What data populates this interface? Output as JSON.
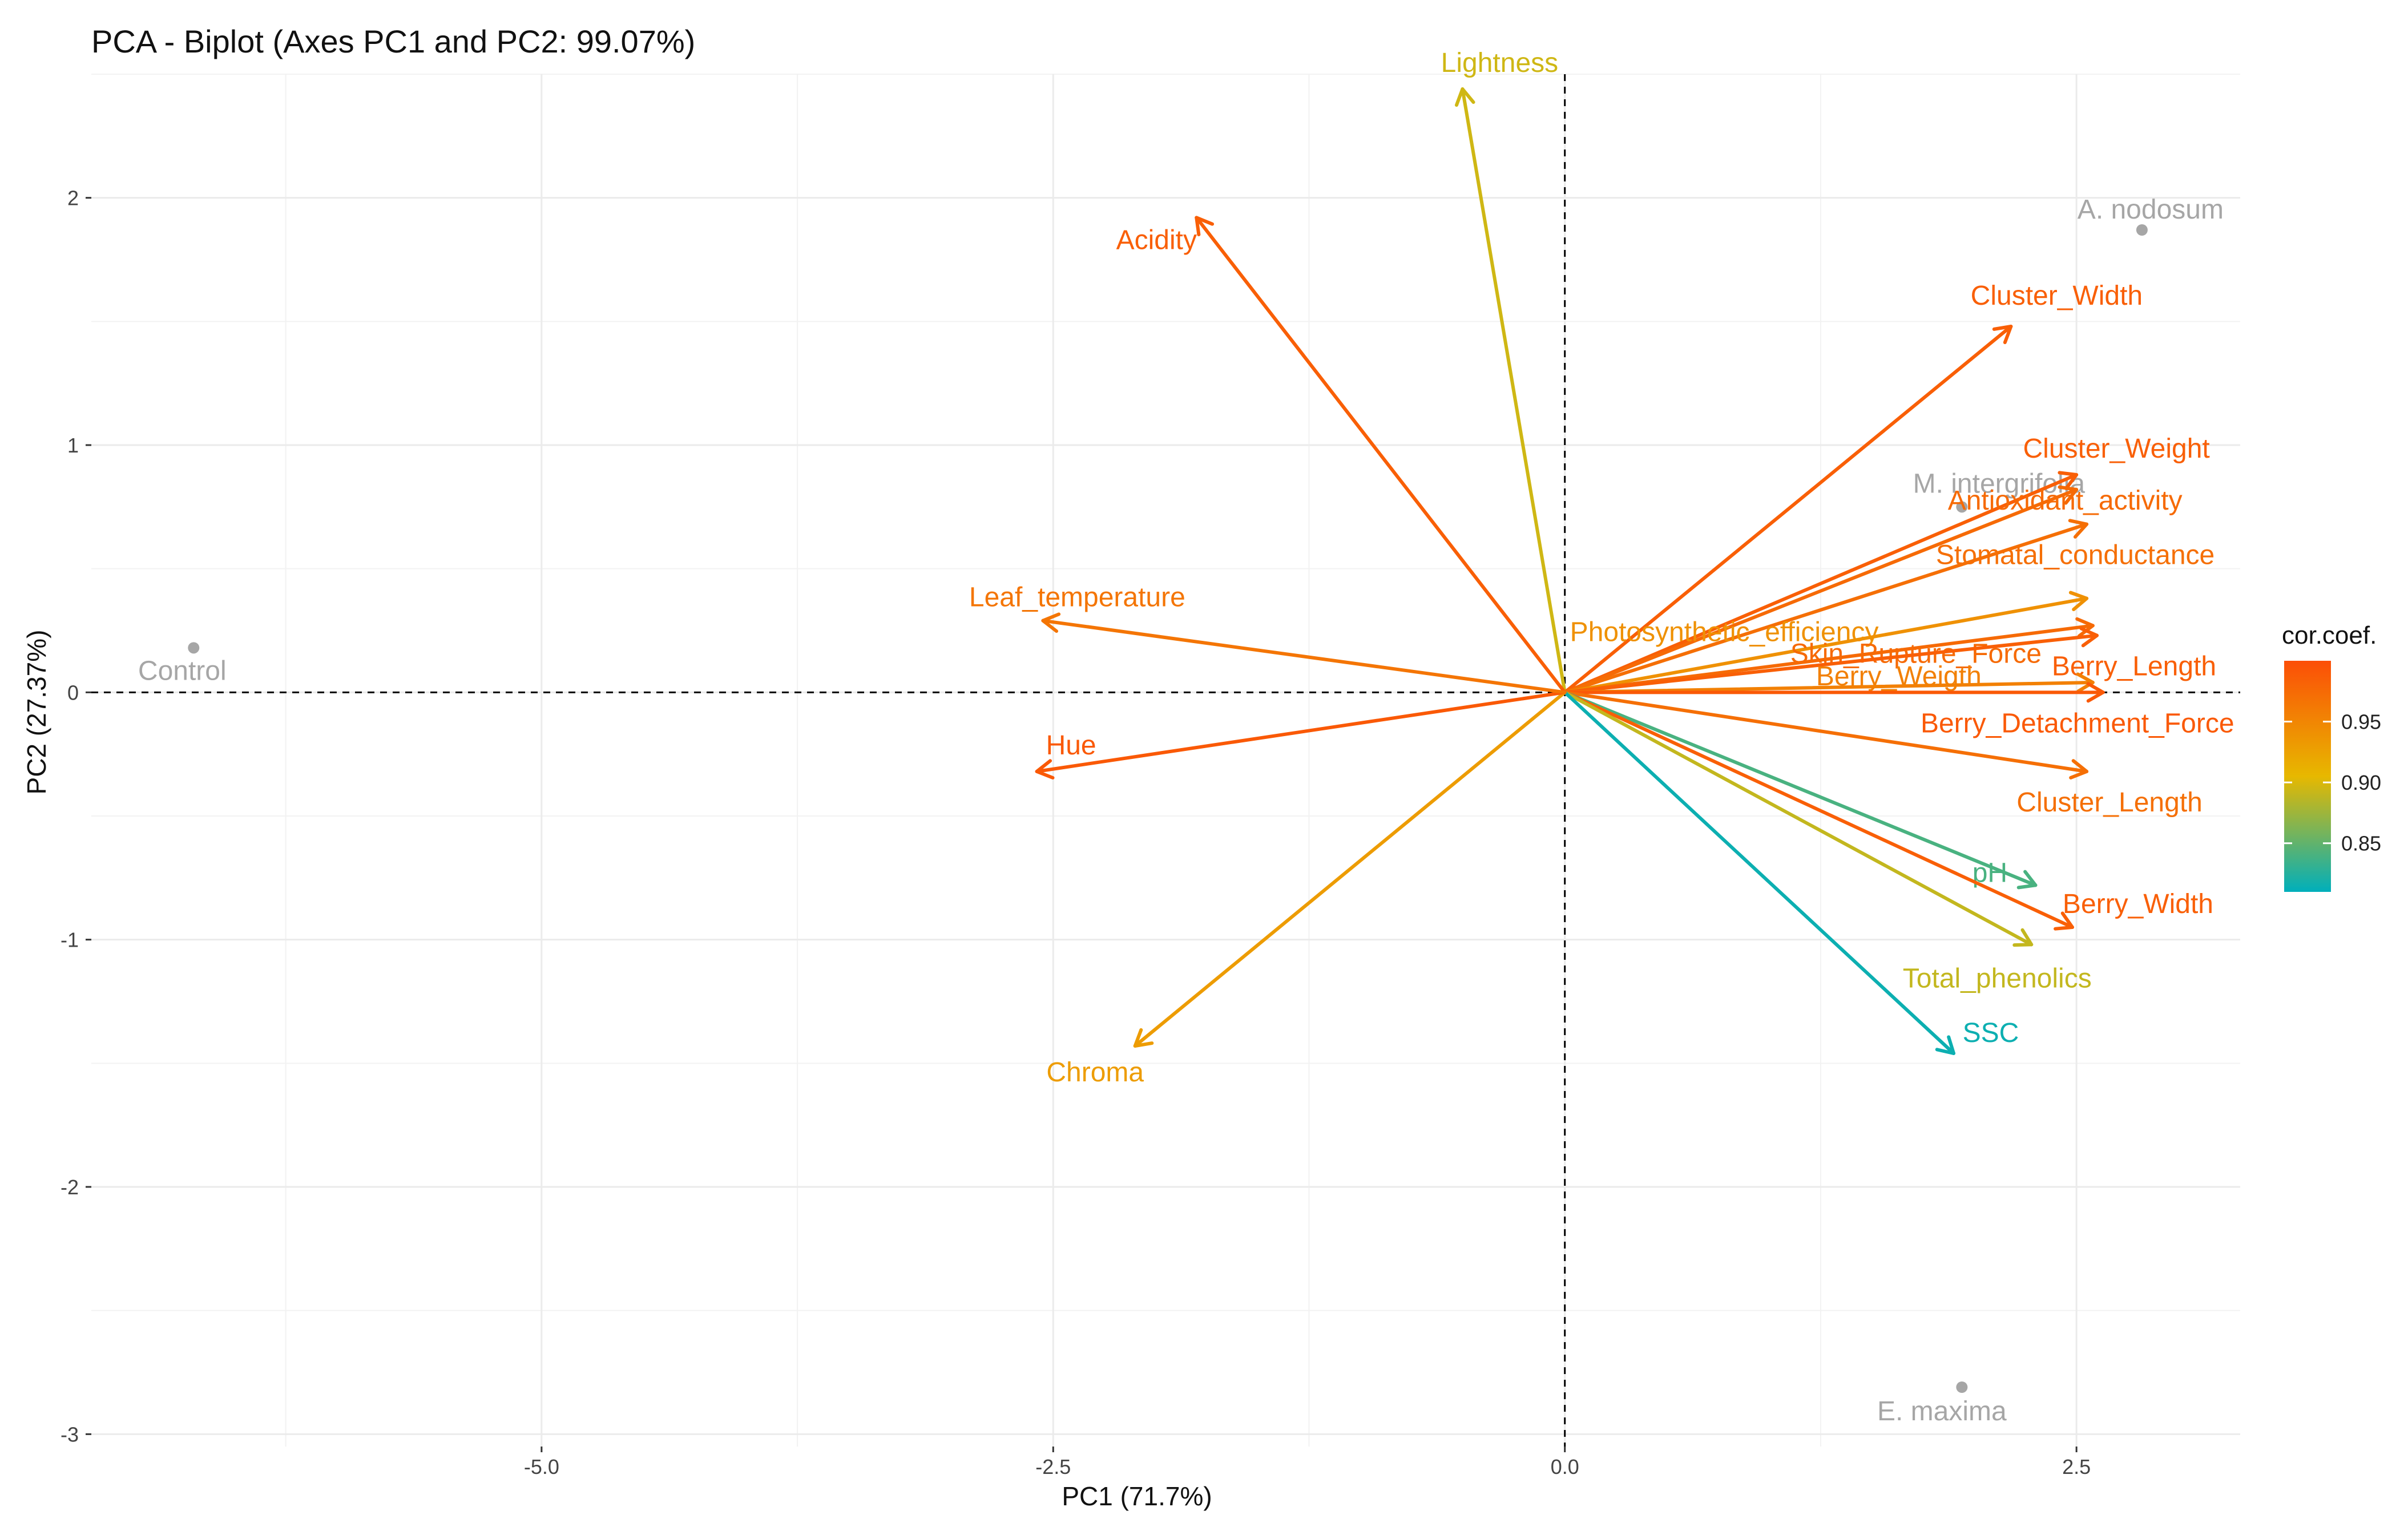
{
  "chart_data": {
    "type": "scatter",
    "subtype": "pca-biplot",
    "title": "PCA - Biplot (Axes PC1 and PC2: 99.07%)",
    "xlabel": "PC1 (71.7%)",
    "ylabel": "PC2 (27.37%)",
    "xlim": [
      -7.2,
      3.3
    ],
    "ylim": [
      -3.05,
      2.5
    ],
    "x_ticks": [
      -5.0,
      -2.5,
      0.0,
      2.5
    ],
    "x_tick_labels": [
      "-5.0",
      "-2.5",
      "0.0",
      "2.5"
    ],
    "y_ticks": [
      -3,
      -2,
      -1,
      0,
      1,
      2
    ],
    "y_tick_labels": [
      "-3",
      "-2",
      "-1",
      "0",
      "1",
      "2"
    ],
    "grid": true,
    "reference_lines": {
      "x": 0,
      "y": 0,
      "style": "dashed"
    },
    "individuals": [
      {
        "name": "Control",
        "x": -6.7,
        "y": 0.18
      },
      {
        "name": "A. nodosum",
        "x": 2.82,
        "y": 1.87
      },
      {
        "name": "M. intergrifolia",
        "x": 1.94,
        "y": 0.75
      },
      {
        "name": "E. maxima",
        "x": 1.94,
        "y": -2.81
      }
    ],
    "variables": [
      {
        "name": "Lightness",
        "x": -0.5,
        "y": 2.44,
        "cor": 0.895
      },
      {
        "name": "Acidity",
        "x": -1.8,
        "y": 1.92,
        "cor": 0.985
      },
      {
        "name": "Cluster_Width",
        "x": 2.18,
        "y": 1.48,
        "cor": 0.985
      },
      {
        "name": "Cluster_Weight",
        "x": 2.5,
        "y": 0.88,
        "cor": 0.985
      },
      {
        "name": "Antioxidant_activity",
        "x": 2.5,
        "y": 0.82,
        "cor": 0.975
      },
      {
        "name": "Stomatal_conductance",
        "x": 2.55,
        "y": 0.68,
        "cor": 0.97
      },
      {
        "name": "Photosynthetic_efficiency",
        "x": 2.55,
        "y": 0.38,
        "cor": 0.94
      },
      {
        "name": "Skin_Rupture_Force",
        "x": 2.58,
        "y": 0.27,
        "cor": 0.975
      },
      {
        "name": "Berry_Length",
        "x": 2.6,
        "y": 0.23,
        "cor": 0.985
      },
      {
        "name": "Berry_Weigth",
        "x": 2.58,
        "y": 0.04,
        "cor": 0.955
      },
      {
        "name": "Berry_Detachment_Force",
        "x": 2.63,
        "y": 0.0,
        "cor": 0.99
      },
      {
        "name": "Cluster_Length",
        "x": 2.55,
        "y": -0.32,
        "cor": 0.97
      },
      {
        "name": "pH",
        "x": 2.3,
        "y": -0.78,
        "cor": 0.84
      },
      {
        "name": "Berry_Width",
        "x": 2.48,
        "y": -0.95,
        "cor": 0.985
      },
      {
        "name": "Total_phenolics",
        "x": 2.28,
        "y": -1.02,
        "cor": 0.89
      },
      {
        "name": "SSC",
        "x": 1.9,
        "y": -1.46,
        "cor": 0.815
      },
      {
        "name": "Chroma",
        "x": -2.1,
        "y": -1.43,
        "cor": 0.93
      },
      {
        "name": "Hue",
        "x": -2.58,
        "y": -0.32,
        "cor": 0.99
      },
      {
        "name": "Leaf_temperature",
        "x": -2.55,
        "y": 0.29,
        "cor": 0.965
      }
    ],
    "legend": {
      "title": "cor.coef.",
      "position": "right",
      "range": [
        0.81,
        1.0
      ],
      "ticks": [
        0.85,
        0.9,
        0.95
      ],
      "tick_labels": [
        "0.85",
        "0.90",
        "0.95"
      ],
      "gradient_colors": [
        "#00AFBB",
        "#E7B800",
        "#FC4E07"
      ]
    }
  }
}
